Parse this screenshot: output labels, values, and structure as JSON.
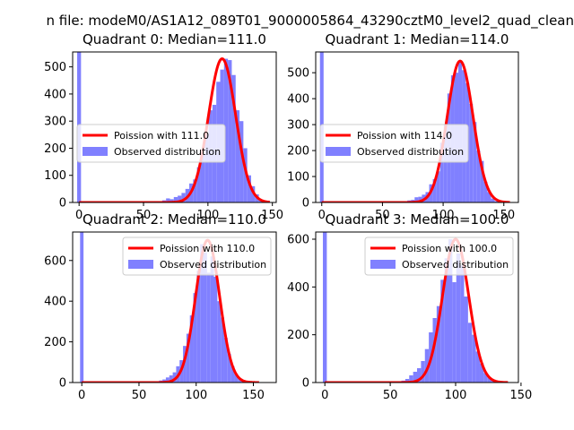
{
  "figure": {
    "suptitle": "n file: modeM0/AS1A12_089T01_9000005864_43290cztM0_level2_quad_clean"
  },
  "colors": {
    "hist": "#8080ff",
    "fit": "#ff0000",
    "axes": "#000000"
  },
  "chart_data": [
    {
      "type": "bar",
      "title": "Quadrant 0: Median=111.0",
      "xlabel": "",
      "ylabel": "",
      "xlim": [
        -5,
        153
      ],
      "ylim": [
        0,
        555
      ],
      "xticks": [
        0,
        50,
        100,
        150
      ],
      "yticks": [
        0,
        100,
        200,
        300,
        400,
        500
      ],
      "legend_position": "center-left",
      "lambda": 111.0,
      "curve_scale": 530,
      "curve_xrange": [
        0,
        148
      ],
      "series": [
        {
          "name": "Poission with 111.0",
          "kind": "line"
        },
        {
          "name": "Observed distribution",
          "kind": "histogram"
        }
      ],
      "bin_width": 3,
      "bins": [
        {
          "x": 0,
          "v": 555
        },
        {
          "x": 60,
          "v": 5
        },
        {
          "x": 63,
          "v": 3
        },
        {
          "x": 66,
          "v": 8
        },
        {
          "x": 69,
          "v": 15
        },
        {
          "x": 72,
          "v": 12
        },
        {
          "x": 75,
          "v": 20
        },
        {
          "x": 78,
          "v": 25
        },
        {
          "x": 81,
          "v": 35
        },
        {
          "x": 84,
          "v": 50
        },
        {
          "x": 87,
          "v": 70
        },
        {
          "x": 90,
          "v": 85
        },
        {
          "x": 93,
          "v": 130
        },
        {
          "x": 96,
          "v": 175
        },
        {
          "x": 99,
          "v": 250
        },
        {
          "x": 102,
          "v": 340
        },
        {
          "x": 105,
          "v": 360
        },
        {
          "x": 108,
          "v": 445
        },
        {
          "x": 111,
          "v": 490
        },
        {
          "x": 114,
          "v": 530
        },
        {
          "x": 117,
          "v": 525
        },
        {
          "x": 120,
          "v": 470
        },
        {
          "x": 123,
          "v": 340
        },
        {
          "x": 126,
          "v": 300
        },
        {
          "x": 129,
          "v": 200
        },
        {
          "x": 132,
          "v": 100
        },
        {
          "x": 135,
          "v": 60
        },
        {
          "x": 138,
          "v": 30
        },
        {
          "x": 141,
          "v": 10
        },
        {
          "x": 144,
          "v": 4
        }
      ]
    },
    {
      "type": "bar",
      "title": "Quadrant 1: Median=114.0",
      "xlabel": "",
      "ylabel": "",
      "xlim": [
        -5,
        162
      ],
      "ylim": [
        0,
        580
      ],
      "xticks": [
        0,
        50,
        100,
        150
      ],
      "yticks": [
        0,
        100,
        200,
        300,
        400,
        500
      ],
      "legend_position": "center-left",
      "lambda": 114.0,
      "curve_scale": 545,
      "curve_xrange": [
        0,
        155
      ],
      "series": [
        {
          "name": "Poission with 114.0",
          "kind": "line"
        },
        {
          "name": "Observed distribution",
          "kind": "histogram"
        }
      ],
      "bin_width": 3,
      "bins": [
        {
          "x": 0,
          "v": 580
        },
        {
          "x": 72,
          "v": 8
        },
        {
          "x": 75,
          "v": 10
        },
        {
          "x": 78,
          "v": 20
        },
        {
          "x": 81,
          "v": 22
        },
        {
          "x": 84,
          "v": 30
        },
        {
          "x": 87,
          "v": 40
        },
        {
          "x": 90,
          "v": 70
        },
        {
          "x": 93,
          "v": 90
        },
        {
          "x": 96,
          "v": 120
        },
        {
          "x": 99,
          "v": 230
        },
        {
          "x": 102,
          "v": 300
        },
        {
          "x": 105,
          "v": 420
        },
        {
          "x": 108,
          "v": 490
        },
        {
          "x": 111,
          "v": 500
        },
        {
          "x": 114,
          "v": 545
        },
        {
          "x": 117,
          "v": 510
        },
        {
          "x": 120,
          "v": 460
        },
        {
          "x": 123,
          "v": 380
        },
        {
          "x": 126,
          "v": 310
        },
        {
          "x": 129,
          "v": 200
        },
        {
          "x": 132,
          "v": 160
        },
        {
          "x": 135,
          "v": 80
        },
        {
          "x": 138,
          "v": 40
        },
        {
          "x": 141,
          "v": 15
        },
        {
          "x": 144,
          "v": 5
        }
      ]
    },
    {
      "type": "bar",
      "title": "Quadrant 2: Median=110.0",
      "xlabel": "",
      "ylabel": "",
      "xlim": [
        -8,
        170
      ],
      "ylim": [
        0,
        740
      ],
      "xticks": [
        0,
        50,
        100,
        150
      ],
      "yticks": [
        0,
        200,
        400,
        600
      ],
      "legend_position": "top-right",
      "lambda": 110.0,
      "curve_scale": 700,
      "curve_xrange": [
        0,
        155
      ],
      "series": [
        {
          "name": "Poission with 110.0",
          "kind": "line"
        },
        {
          "name": "Observed distribution",
          "kind": "histogram"
        }
      ],
      "bin_width": 3,
      "bins": [
        {
          "x": 0,
          "v": 740
        },
        {
          "x": 66,
          "v": 5
        },
        {
          "x": 69,
          "v": 10
        },
        {
          "x": 72,
          "v": 15
        },
        {
          "x": 75,
          "v": 25
        },
        {
          "x": 78,
          "v": 35
        },
        {
          "x": 81,
          "v": 50
        },
        {
          "x": 84,
          "v": 80
        },
        {
          "x": 87,
          "v": 110
        },
        {
          "x": 90,
          "v": 180
        },
        {
          "x": 93,
          "v": 240
        },
        {
          "x": 96,
          "v": 330
        },
        {
          "x": 99,
          "v": 440
        },
        {
          "x": 102,
          "v": 550
        },
        {
          "x": 105,
          "v": 680
        },
        {
          "x": 108,
          "v": 640
        },
        {
          "x": 111,
          "v": 540
        },
        {
          "x": 114,
          "v": 620
        },
        {
          "x": 117,
          "v": 520
        },
        {
          "x": 120,
          "v": 400
        },
        {
          "x": 123,
          "v": 320
        },
        {
          "x": 126,
          "v": 220
        },
        {
          "x": 129,
          "v": 140
        },
        {
          "x": 132,
          "v": 80
        },
        {
          "x": 135,
          "v": 40
        },
        {
          "x": 138,
          "v": 20
        },
        {
          "x": 141,
          "v": 8
        }
      ]
    },
    {
      "type": "bar",
      "title": "Quadrant 3: Median=100.0",
      "xlabel": "",
      "ylabel": "",
      "xlim": [
        -7,
        148
      ],
      "ylim": [
        0,
        630
      ],
      "xticks": [
        0,
        50,
        100,
        150
      ],
      "yticks": [
        0,
        200,
        400,
        600
      ],
      "legend_position": "top-right",
      "lambda": 100.0,
      "curve_scale": 600,
      "curve_xrange": [
        0,
        140
      ],
      "series": [
        {
          "name": "Poission with 100.0",
          "kind": "line"
        },
        {
          "name": "Observed distribution",
          "kind": "histogram"
        }
      ],
      "bin_width": 3,
      "bins": [
        {
          "x": 0,
          "v": 630
        },
        {
          "x": 60,
          "v": 8
        },
        {
          "x": 63,
          "v": 15
        },
        {
          "x": 66,
          "v": 30
        },
        {
          "x": 69,
          "v": 45
        },
        {
          "x": 72,
          "v": 60
        },
        {
          "x": 75,
          "v": 90
        },
        {
          "x": 78,
          "v": 140
        },
        {
          "x": 81,
          "v": 210
        },
        {
          "x": 84,
          "v": 270
        },
        {
          "x": 87,
          "v": 320
        },
        {
          "x": 90,
          "v": 430
        },
        {
          "x": 93,
          "v": 520
        },
        {
          "x": 96,
          "v": 600
        },
        {
          "x": 99,
          "v": 420
        },
        {
          "x": 102,
          "v": 540
        },
        {
          "x": 105,
          "v": 490
        },
        {
          "x": 108,
          "v": 360
        },
        {
          "x": 111,
          "v": 250
        },
        {
          "x": 114,
          "v": 200
        },
        {
          "x": 117,
          "v": 130
        },
        {
          "x": 120,
          "v": 80
        },
        {
          "x": 123,
          "v": 40
        },
        {
          "x": 126,
          "v": 20
        },
        {
          "x": 129,
          "v": 10
        }
      ]
    }
  ]
}
